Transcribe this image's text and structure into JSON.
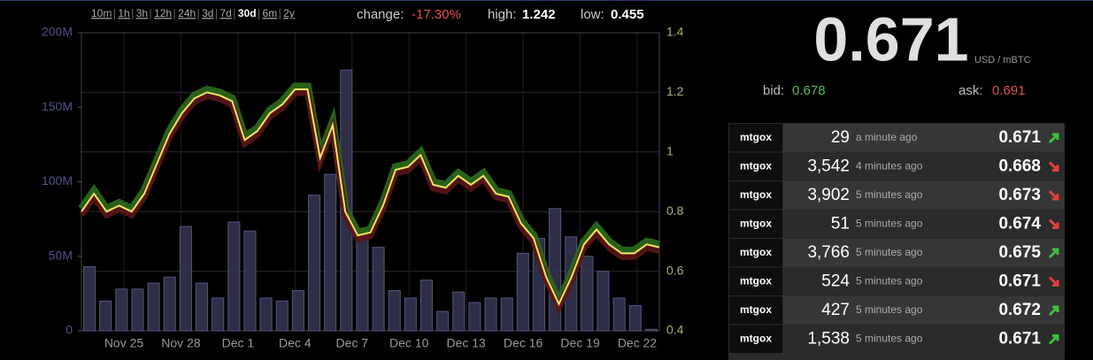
{
  "ranges": {
    "items": [
      "10m",
      "1h",
      "3h",
      "12h",
      "24h",
      "3d",
      "7d",
      "30d",
      "6m",
      "2y"
    ],
    "selected": 7
  },
  "stats": {
    "change_label": "change:",
    "change": "-17.30%",
    "high_label": "high:",
    "high": "1.242",
    "low_label": "low:",
    "low": "0.455"
  },
  "price": {
    "last": "0.671",
    "unit": "USD / mBTC",
    "bid_label": "bid:",
    "bid": "0.678",
    "ask_label": "ask:",
    "ask": "0.691"
  },
  "trades": [
    {
      "exchange": "mtgox",
      "amount": "29",
      "time": "a minute ago",
      "price": "0.671",
      "direction": "up"
    },
    {
      "exchange": "mtgox",
      "amount": "3,542",
      "time": "4 minutes ago",
      "price": "0.668",
      "direction": "down"
    },
    {
      "exchange": "mtgox",
      "amount": "3,902",
      "time": "5 minutes ago",
      "price": "0.673",
      "direction": "down"
    },
    {
      "exchange": "mtgox",
      "amount": "51",
      "time": "5 minutes ago",
      "price": "0.674",
      "direction": "down"
    },
    {
      "exchange": "mtgox",
      "amount": "3,766",
      "time": "5 minutes ago",
      "price": "0.675",
      "direction": "up"
    },
    {
      "exchange": "mtgox",
      "amount": "524",
      "time": "5 minutes ago",
      "price": "0.671",
      "direction": "down"
    },
    {
      "exchange": "mtgox",
      "amount": "427",
      "time": "5 minutes ago",
      "price": "0.672",
      "direction": "up"
    },
    {
      "exchange": "mtgox",
      "amount": "1,538",
      "time": "5 minutes ago",
      "price": "0.671",
      "direction": "up"
    }
  ],
  "chart_data": {
    "type": "bar-line",
    "xlabels": [
      "Nov 25",
      "Nov 28",
      "Dec 1",
      "Dec 4",
      "Dec 7",
      "Dec 10",
      "Dec 13",
      "Dec 16",
      "Dec 19",
      "Dec 22"
    ],
    "ylim": [
      0,
      200000000
    ],
    "yticks": [
      {
        "value": 0,
        "label": "0"
      },
      {
        "value": 50000000,
        "label": "50M"
      },
      {
        "value": 100000000,
        "label": "100M"
      },
      {
        "value": 150000000,
        "label": "150M"
      },
      {
        "value": 200000000,
        "label": "200M"
      }
    ],
    "y2lim": [
      0.4,
      1.4
    ],
    "y2ticks": [
      0.4,
      0.6,
      0.8,
      1,
      1.2,
      1.4
    ],
    "grid": true,
    "series": [
      {
        "type": "bar",
        "color": "#33334f",
        "values": [
          43000000,
          20000000,
          28000000,
          28000000,
          32000000,
          36000000,
          70000000,
          32000000,
          22000000,
          73000000,
          67000000,
          22000000,
          20000000,
          27000000,
          91000000,
          105000000,
          175000000,
          64000000,
          56000000,
          27000000,
          22000000,
          34000000,
          13000000,
          26000000,
          19000000,
          22000000,
          22000000,
          52000000,
          62000000,
          82000000,
          63000000,
          50000000,
          40000000,
          22000000,
          17000000,
          1000000
        ]
      },
      {
        "type": "line",
        "axis": "y2",
        "color": "#f3e36a",
        "values": [
          0.8,
          0.86,
          0.8,
          0.82,
          0.8,
          0.86,
          0.96,
          1.06,
          1.13,
          1.18,
          1.2,
          1.19,
          1.17,
          1.04,
          1.07,
          1.13,
          1.16,
          1.21,
          1.21,
          0.98,
          1.09,
          0.8,
          0.72,
          0.73,
          0.82,
          0.94,
          0.95,
          0.99,
          0.89,
          0.88,
          0.92,
          0.89,
          0.92,
          0.86,
          0.85,
          0.76,
          0.71,
          0.58,
          0.49,
          0.58,
          0.69,
          0.74,
          0.69,
          0.66,
          0.66,
          0.69,
          0.68
        ]
      }
    ]
  }
}
